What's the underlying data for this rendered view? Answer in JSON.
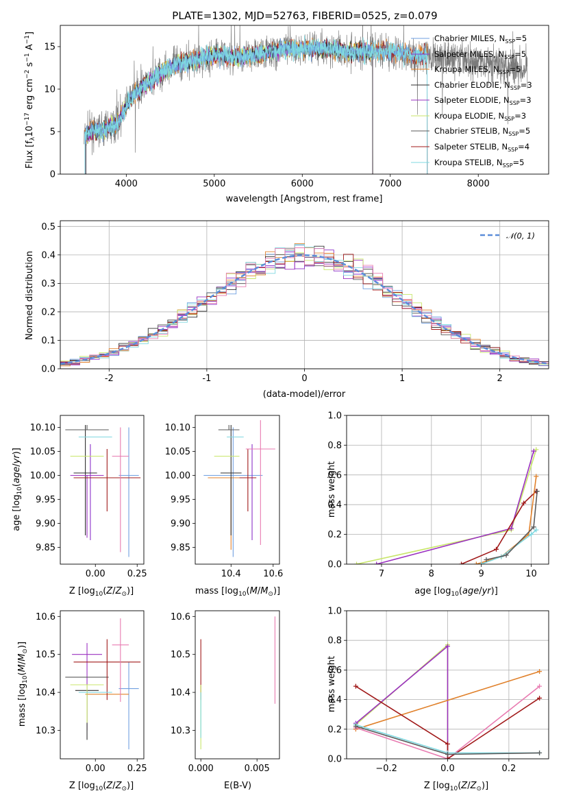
{
  "figure": {
    "title": "PLATE=1302, MJD=52763, FIBERID=0525, z=0.079"
  },
  "colors": {
    "chabrier_miles": "#6f9fe0",
    "salpeter_miles": "#8b2fc9",
    "kroupa_miles": "#e0802a",
    "chabrier_elodie": "#2e2e2e",
    "salpeter_elodie": "#9a30c0",
    "kroupa_elodie": "#c8e66a",
    "chabrier_stelib": "#5a5a5a",
    "salpeter_stelib": "#a01818",
    "kroupa_stelib": "#7fd8e0",
    "normal_curve": "#5b8dd9",
    "hist_pink": "#e87ab0"
  },
  "chart_data": [
    {
      "type": "line",
      "name": "spectrum",
      "xlabel": "wavelength [Angstrom, rest frame]",
      "ylabel": "Flux [f_λ 10^-17 erg cm^-2 s^-1 A^-1]",
      "xlim": [
        3250,
        8800
      ],
      "ylim": [
        0,
        17.5
      ],
      "xticks": [
        4000,
        5000,
        6000,
        7000,
        8000
      ],
      "yticks": [
        0,
        5,
        10,
        15
      ],
      "grid": false,
      "legend_position": "right",
      "legend": [
        "Chabrier MILES, N_SSP=5",
        "Salpeter MILES, N_SSP=5",
        "Kroupa MILES, N_SSP=5",
        "Chabrier ELODIE, N_SSP=3",
        "Salpeter ELODIE, N_SSP=3",
        "Kroupa ELODIE, N_SSP=3",
        "Chabrier STELIB, N_SSP=5",
        "Salpeter STELIB, N_SSP=4",
        "Kroupa STELIB, N_SSP=5"
      ],
      "continuum": {
        "x": [
          3520,
          3600,
          3700,
          3800,
          3900,
          4000,
          4100,
          4200,
          4300,
          4400,
          4600,
          4800,
          5000,
          5200,
          5400,
          5600,
          5800,
          6000,
          6200,
          6400,
          6600,
          6800,
          7000,
          7200,
          7400,
          7600,
          7800,
          8000,
          8200,
          8400,
          8500
        ],
        "y": [
          4.5,
          5.0,
          5.2,
          5.5,
          6.0,
          8.0,
          9.5,
          10.5,
          11.0,
          12.0,
          13.0,
          13.5,
          14.0,
          13.8,
          13.9,
          14.3,
          14.8,
          14.7,
          14.9,
          14.6,
          14.4,
          14.5,
          14.4,
          14.1,
          13.9,
          13.7,
          13.5,
          13.2,
          13.0,
          12.8,
          12.6
        ]
      }
    },
    {
      "type": "histogram",
      "name": "residuals",
      "xlabel": "(data-model)/error",
      "ylabel": "Normed distribution",
      "xlim": [
        -2.5,
        2.5
      ],
      "ylim": [
        0,
        0.52
      ],
      "xticks": [
        -2,
        -1,
        0,
        1,
        2
      ],
      "yticks": [
        0.0,
        0.1,
        0.2,
        0.3,
        0.4,
        0.5
      ],
      "grid": true,
      "legend": [
        "𝒩(0, 1)"
      ],
      "bin_width": 0.1
    },
    {
      "type": "scatter",
      "name": "age_vs_Z",
      "xlabel": "Z [log10(Z/Z⊙)]",
      "ylabel": "age [log10(age/yr)]",
      "xlim": [
        -0.21,
        0.29
      ],
      "ylim": [
        9.815,
        10.125
      ],
      "xticks": [
        -0.25,
        0.0,
        0.25
      ],
      "xticklabels": [
        "−0.25",
        "0.00",
        "0.25"
      ],
      "yticks": [
        9.85,
        9.9,
        9.95,
        10.0,
        10.05,
        10.1
      ],
      "points": [
        {
          "color": "chabrier_miles",
          "x": 0.2,
          "y": 10.0,
          "xerr": 0.06,
          "yerr_lo": 0.17,
          "yerr_hi": 0.1
        },
        {
          "color": "salpeter_miles",
          "x": -0.03,
          "y": 10.005,
          "xerr": 0.0,
          "yerr_lo": 0.14,
          "yerr_hi": 0.06
        },
        {
          "color": "kroupa_miles",
          "x": 0.07,
          "y": 9.995,
          "xerr": 0.13,
          "yerr_lo": 0.0,
          "yerr_hi": 0.0
        },
        {
          "color": "chabrier_elodie",
          "x": -0.06,
          "y": 10.005,
          "xerr": 0.07,
          "yerr_lo": 0.13,
          "yerr_hi": 0.1
        },
        {
          "color": "salpeter_elodie",
          "x": -0.05,
          "y": 10.0,
          "xerr": 0.1,
          "yerr_lo": 0.13,
          "yerr_hi": 0.0
        },
        {
          "color": "kroupa_elodie",
          "x": -0.05,
          "y": 10.04,
          "xerr": 0.1,
          "yerr_lo": 0.0,
          "yerr_hi": 0.0
        },
        {
          "color": "chabrier_stelib",
          "x": -0.05,
          "y": 10.095,
          "xerr": 0.13,
          "yerr_lo": 0.0,
          "yerr_hi": 0.01
        },
        {
          "color": "salpeter_stelib",
          "x": 0.07,
          "y": 9.995,
          "xerr": 0.2,
          "yerr_lo": 0.07,
          "yerr_hi": 0.06
        },
        {
          "color": "kroupa_stelib",
          "x": 0.0,
          "y": 10.08,
          "xerr": 0.1,
          "yerr_lo": 0.0,
          "yerr_hi": 0.0
        },
        {
          "color": "hist_pink",
          "x": 0.15,
          "y": 10.04,
          "xerr": 0.05,
          "yerr_lo": 0.2,
          "yerr_hi": 0.06
        }
      ]
    },
    {
      "type": "scatter",
      "name": "age_vs_mass",
      "xlabel": "mass [log10(M/M⊙)]",
      "xlim": [
        10.23,
        10.63
      ],
      "ylim": [
        9.815,
        10.125
      ],
      "xticks": [
        10.4,
        10.6
      ],
      "yticks": [
        9.85,
        9.9,
        9.95,
        10.0,
        10.05,
        10.1
      ],
      "points": [
        {
          "color": "chabrier_miles",
          "x": 10.41,
          "y": 10.0,
          "xerr": 0.14,
          "yerr_lo": 0.17,
          "yerr_hi": 0.1
        },
        {
          "color": "salpeter_miles",
          "x": 10.5,
          "y": 10.005,
          "xerr": 0.0,
          "yerr_lo": 0.14,
          "yerr_hi": 0.06
        },
        {
          "color": "kroupa_miles",
          "x": 10.4,
          "y": 9.995,
          "xerr": 0.11,
          "yerr_lo": 0.15,
          "yerr_hi": 0.0
        },
        {
          "color": "chabrier_elodie",
          "x": 10.4,
          "y": 10.005,
          "xerr": 0.05,
          "yerr_lo": 0.13,
          "yerr_hi": 0.1
        },
        {
          "color": "kroupa_elodie",
          "x": 10.38,
          "y": 10.04,
          "xerr": 0.06,
          "yerr_lo": 0.0,
          "yerr_hi": 0.0
        },
        {
          "color": "chabrier_stelib",
          "x": 10.39,
          "y": 10.095,
          "xerr": 0.05,
          "yerr_lo": 0.0,
          "yerr_hi": 0.01
        },
        {
          "color": "salpeter_stelib",
          "x": 10.48,
          "y": 9.995,
          "xerr": 0.04,
          "yerr_lo": 0.07,
          "yerr_hi": 0.06
        },
        {
          "color": "kroupa_stelib",
          "x": 10.42,
          "y": 10.08,
          "xerr": 0.04,
          "yerr_lo": 0.0,
          "yerr_hi": 0.0
        },
        {
          "color": "hist_pink",
          "x": 10.54,
          "y": 10.055,
          "xerr": 0.07,
          "yerr_lo": 0.2,
          "yerr_hi": 0.06
        }
      ]
    },
    {
      "type": "line",
      "name": "weight_vs_age",
      "xlabel": "age [log10(age/yr)]",
      "ylabel": "mass weight",
      "xlim": [
        6.3,
        10.35
      ],
      "ylim": [
        0,
        1.0
      ],
      "xticks": [
        7,
        8,
        9,
        10
      ],
      "yticks": [
        0.0,
        0.2,
        0.4,
        0.6,
        0.8,
        1.0
      ],
      "grid": true,
      "series": [
        {
          "color": "kroupa_elodie",
          "x": [
            6.5,
            9.6,
            10.1
          ],
          "y": [
            0.0,
            0.23,
            0.77
          ]
        },
        {
          "color": "salpeter_elodie",
          "x": [
            6.9,
            9.6,
            10.05
          ],
          "y": [
            0.0,
            0.24,
            0.76
          ]
        },
        {
          "color": "salpeter_stelib",
          "x": [
            8.6,
            9.3,
            9.85,
            10.1
          ],
          "y": [
            0.0,
            0.1,
            0.41,
            0.49
          ]
        },
        {
          "color": "kroupa_miles",
          "x": [
            8.9,
            9.4,
            9.95,
            10.1
          ],
          "y": [
            0.0,
            0.05,
            0.2,
            0.59
          ]
        },
        {
          "color": "kroupa_stelib",
          "x": [
            9.0,
            9.4,
            10.0,
            10.1
          ],
          "y": [
            0.0,
            0.05,
            0.2,
            0.23
          ]
        },
        {
          "color": "chabrier_stelib",
          "x": [
            9.1,
            9.5,
            10.05,
            10.12
          ],
          "y": [
            0.03,
            0.06,
            0.25,
            0.49
          ]
        }
      ]
    },
    {
      "type": "scatter",
      "name": "mass_vs_Z",
      "xlabel": "Z [log10(Z/Z⊙)]",
      "ylabel": "mass [log10(M/M⊙)]",
      "xlim": [
        -0.21,
        0.29
      ],
      "ylim": [
        10.225,
        10.615
      ],
      "xticks": [
        -0.25,
        0.0,
        0.25
      ],
      "xticklabels": [
        "−0.25",
        "0.00",
        "0.25"
      ],
      "yticks": [
        10.3,
        10.4,
        10.5,
        10.6
      ],
      "points": [
        {
          "color": "chabrier_miles",
          "x": 0.2,
          "y": 10.41,
          "xerr": 0.06,
          "yerr_lo": 0.16,
          "yerr_hi": 0.07
        },
        {
          "color": "salpeter_elodie",
          "x": -0.05,
          "y": 10.5,
          "xerr": 0.09,
          "yerr_lo": 0.2,
          "yerr_hi": 0.03
        },
        {
          "color": "kroupa_miles",
          "x": 0.07,
          "y": 10.395,
          "xerr": 0.13,
          "yerr_lo": 0.0,
          "yerr_hi": 0.0
        },
        {
          "color": "chabrier_elodie",
          "x": -0.05,
          "y": 10.405,
          "xerr": 0.07,
          "yerr_lo": 0.13,
          "yerr_hi": 0.0
        },
        {
          "color": "kroupa_elodie",
          "x": -0.05,
          "y": 10.42,
          "xerr": 0.1,
          "yerr_lo": 0.1,
          "yerr_hi": 0.0
        },
        {
          "color": "chabrier_stelib",
          "x": -0.05,
          "y": 10.44,
          "xerr": 0.13,
          "yerr_lo": 0.0,
          "yerr_hi": 0.0
        },
        {
          "color": "salpeter_stelib",
          "x": 0.07,
          "y": 10.48,
          "xerr": 0.2,
          "yerr_lo": 0.1,
          "yerr_hi": 0.06
        },
        {
          "color": "kroupa_stelib",
          "x": 0.0,
          "y": 10.4,
          "xerr": 0.1,
          "yerr_lo": 0.0,
          "yerr_hi": 0.0
        },
        {
          "color": "hist_pink",
          "x": 0.15,
          "y": 10.525,
          "xerr": 0.05,
          "yerr_lo": 0.15,
          "yerr_hi": 0.07
        }
      ]
    },
    {
      "type": "scatter",
      "name": "mass_vs_ebv",
      "xlabel": "E(B-V)",
      "xlim": [
        -0.0005,
        0.007
      ],
      "ylim": [
        10.225,
        10.615
      ],
      "xticks": [
        0.0,
        0.005
      ],
      "xticklabels": [
        "0.000",
        "0.005"
      ],
      "yticks": [
        10.3,
        10.4,
        10.5,
        10.6
      ],
      "points": [
        {
          "color": "salpeter_stelib",
          "x": 0.0,
          "y": 10.48,
          "yerr_lo": 0.1,
          "yerr_hi": 0.06
        },
        {
          "color": "kroupa_elodie",
          "x": 0.0,
          "y": 10.42,
          "yerr_lo": 0.17,
          "yerr_hi": 0.0
        },
        {
          "color": "kroupa_stelib",
          "x": 0.0,
          "y": 10.4,
          "yerr_lo": 0.12,
          "yerr_hi": 0.0
        },
        {
          "color": "hist_pink",
          "x": 0.0066,
          "y": 10.5,
          "yerr_lo": 0.13,
          "yerr_hi": 0.1
        }
      ]
    },
    {
      "type": "line",
      "name": "weight_vs_Z",
      "xlabel": "Z [log10(Z/Z⊙)]",
      "ylabel": "mass weight",
      "xlim": [
        -0.33,
        0.33
      ],
      "ylim": [
        0,
        1.0
      ],
      "xticks": [
        -0.2,
        0.0,
        0.2
      ],
      "xticklabels": [
        "−0.2",
        "0.0",
        "0.2"
      ],
      "yticks": [
        0.0,
        0.2,
        0.4,
        0.6,
        0.8,
        1.0
      ],
      "grid": true,
      "series": [
        {
          "color": "kroupa_elodie",
          "x": [
            -0.3,
            0.0,
            0.0
          ],
          "y": [
            0.23,
            0.77,
            0.0
          ]
        },
        {
          "color": "salpeter_elodie",
          "x": [
            -0.3,
            0.0,
            0.0
          ],
          "y": [
            0.24,
            0.76,
            0.0
          ]
        },
        {
          "color": "kroupa_miles",
          "x": [
            -0.3,
            0.3
          ],
          "y": [
            0.2,
            0.59
          ]
        },
        {
          "color": "hist_pink",
          "x": [
            -0.3,
            0.0,
            0.3
          ],
          "y": [
            0.21,
            0.0,
            0.49
          ]
        },
        {
          "color": "salpeter_stelib",
          "x": [
            -0.3,
            0.0,
            0.0,
            0.3
          ],
          "y": [
            0.49,
            0.1,
            0.0,
            0.41
          ]
        },
        {
          "color": "kroupa_stelib",
          "x": [
            -0.3,
            0.0,
            0.3
          ],
          "y": [
            0.23,
            0.04,
            0.04
          ]
        },
        {
          "color": "chabrier_stelib",
          "x": [
            -0.3,
            0.0,
            0.3
          ],
          "y": [
            0.22,
            0.03,
            0.04
          ]
        }
      ]
    }
  ]
}
